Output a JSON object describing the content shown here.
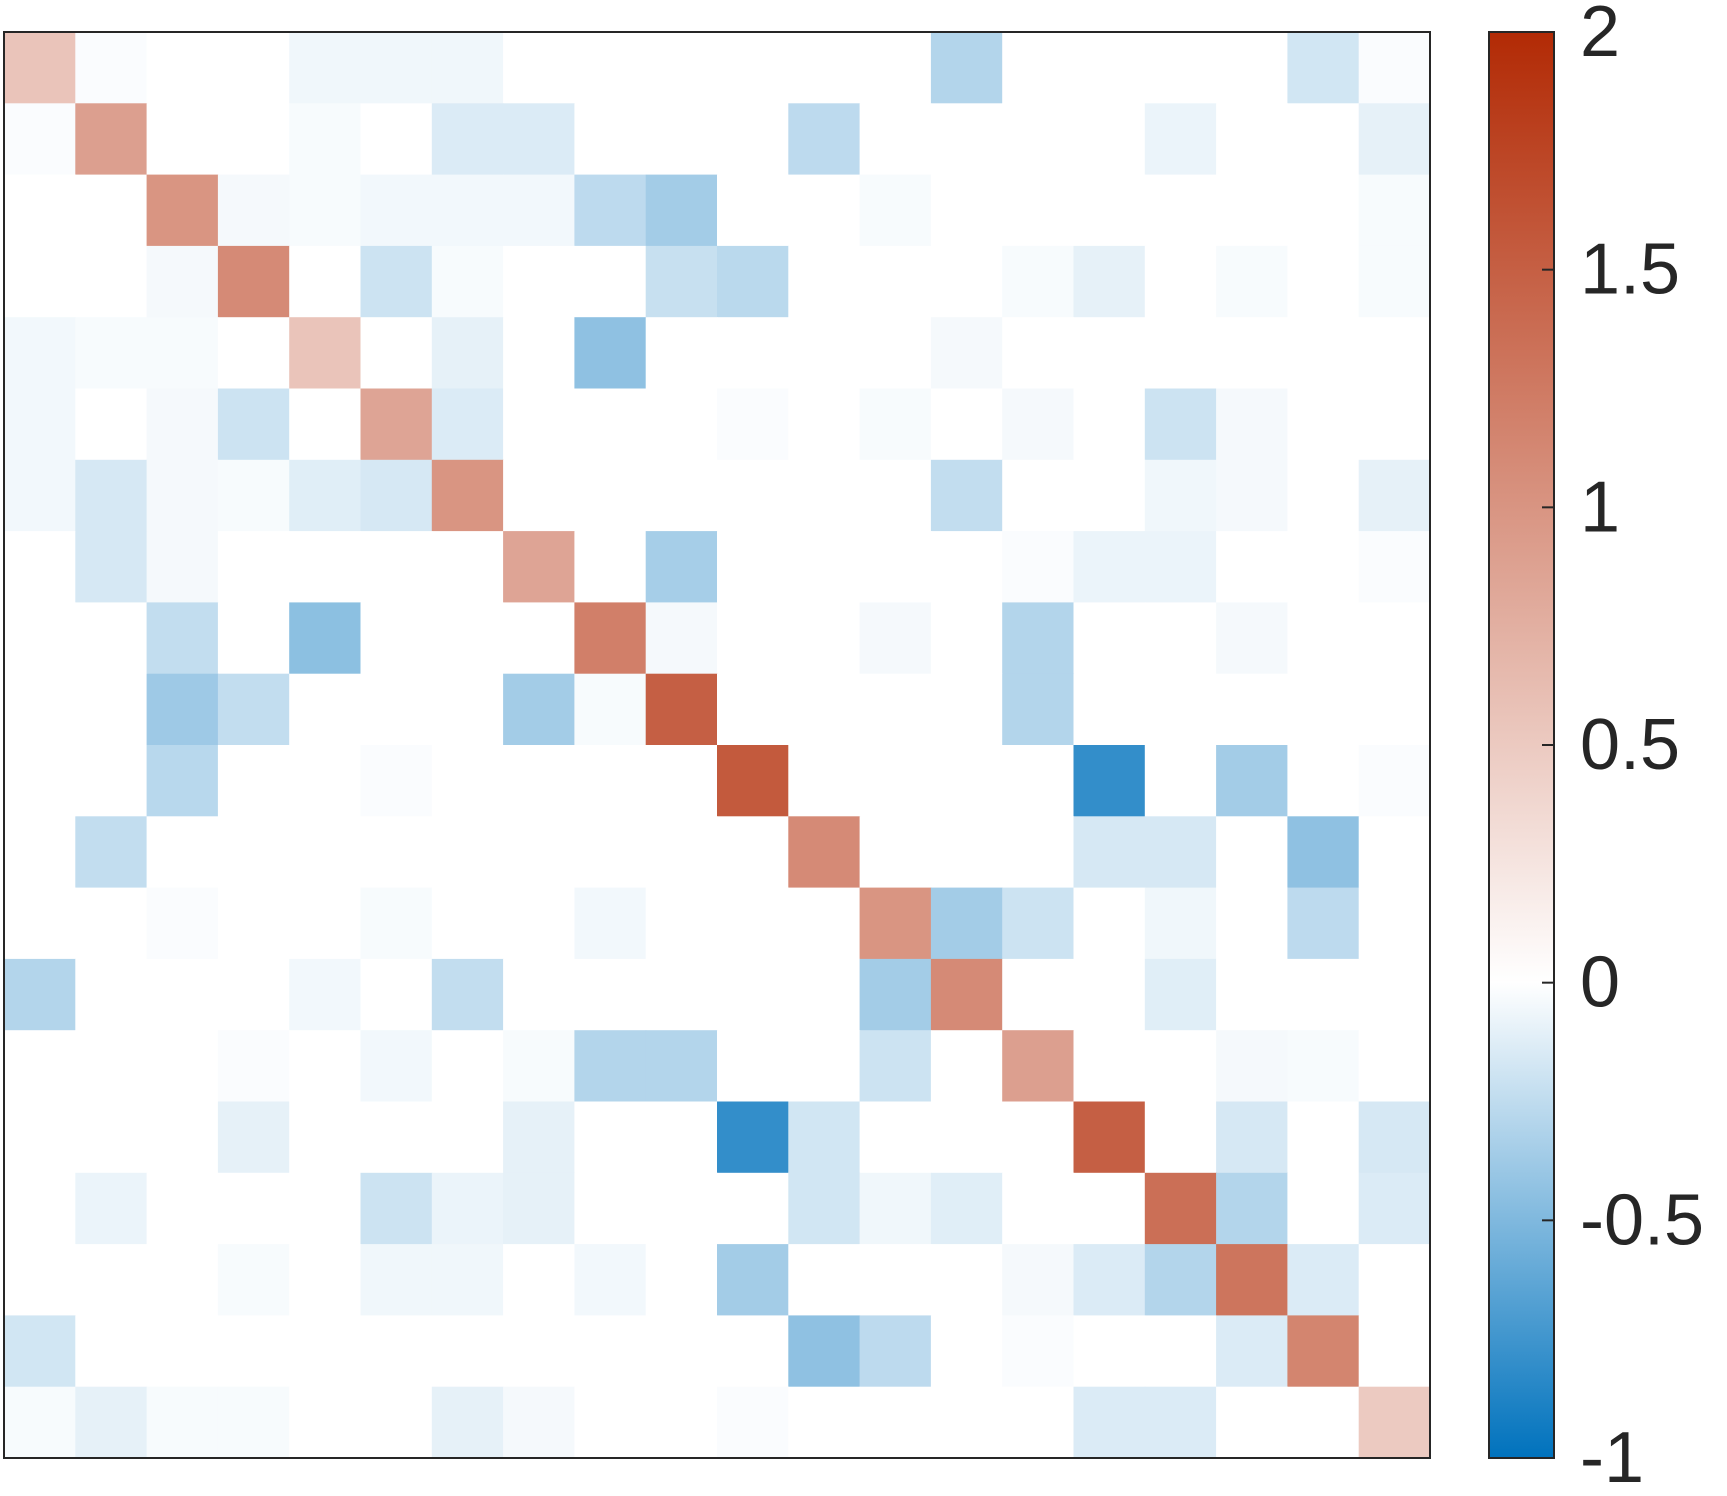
{
  "chart_data": {
    "type": "heatmap",
    "title": "",
    "xlabel": "",
    "ylabel": "",
    "rows": 20,
    "cols": 20,
    "matrix": [
      [
        0.55,
        -0.02,
        0,
        0,
        -0.06,
        -0.06,
        -0.06,
        0,
        0,
        0,
        0,
        0,
        0,
        -0.3,
        0,
        0,
        0,
        0,
        -0.18,
        -0.02
      ],
      [
        -0.02,
        0.9,
        0,
        0,
        -0.03,
        0,
        -0.14,
        -0.14,
        0,
        0,
        0,
        -0.26,
        0,
        0,
        0,
        0,
        -0.08,
        0,
        0,
        -0.1
      ],
      [
        0,
        0,
        1.0,
        -0.04,
        -0.03,
        -0.05,
        -0.05,
        -0.05,
        -0.26,
        -0.36,
        0,
        0,
        -0.03,
        0,
        0,
        0,
        0,
        0,
        0,
        -0.03
      ],
      [
        0,
        0,
        -0.04,
        1.1,
        0,
        -0.2,
        -0.03,
        0,
        0,
        -0.22,
        -0.27,
        0,
        0,
        0,
        -0.03,
        -0.1,
        0,
        -0.03,
        0,
        -0.03
      ],
      [
        -0.05,
        -0.03,
        -0.03,
        0,
        0.55,
        0,
        -0.1,
        0,
        -0.44,
        0,
        0,
        0,
        0,
        -0.04,
        0,
        0,
        0,
        0,
        0,
        0
      ],
      [
        -0.05,
        0,
        -0.04,
        -0.2,
        0,
        0.85,
        -0.14,
        0,
        0,
        0,
        -0.02,
        0,
        -0.03,
        0,
        -0.04,
        0,
        -0.2,
        -0.04,
        0,
        0
      ],
      [
        -0.05,
        -0.16,
        -0.04,
        -0.03,
        -0.12,
        -0.16,
        1.0,
        0,
        0,
        0,
        0,
        0,
        0,
        -0.24,
        0,
        0,
        -0.06,
        -0.04,
        0,
        -0.1
      ],
      [
        0,
        -0.16,
        -0.04,
        0,
        0,
        0,
        0,
        0.85,
        0,
        -0.35,
        0,
        0,
        0,
        0,
        -0.02,
        -0.08,
        -0.08,
        0,
        0,
        -0.02
      ],
      [
        0,
        0,
        -0.24,
        0,
        -0.45,
        0,
        0,
        0,
        1.2,
        -0.04,
        0,
        0,
        -0.04,
        0,
        -0.3,
        0,
        0,
        -0.04,
        0,
        0
      ],
      [
        0,
        0,
        -0.38,
        -0.24,
        0,
        0,
        0,
        -0.36,
        -0.03,
        1.5,
        0,
        0,
        0,
        0,
        -0.3,
        0,
        0,
        0,
        0,
        0
      ],
      [
        0,
        0,
        -0.28,
        0,
        0,
        -0.02,
        0,
        0,
        0,
        0,
        1.55,
        0,
        0,
        0,
        0,
        -0.8,
        0,
        -0.36,
        0,
        -0.02
      ],
      [
        0,
        -0.24,
        0,
        0,
        0,
        0,
        0,
        0,
        0,
        0,
        0,
        1.1,
        0,
        0,
        0,
        -0.16,
        -0.16,
        0,
        -0.44,
        0
      ],
      [
        0,
        0,
        -0.02,
        0,
        0,
        -0.03,
        0,
        0,
        -0.05,
        0,
        0,
        0,
        1.0,
        -0.36,
        -0.2,
        0,
        -0.06,
        0,
        -0.26,
        0
      ],
      [
        -0.3,
        0,
        0,
        0,
        -0.05,
        0,
        -0.24,
        0,
        0,
        0,
        0,
        0,
        -0.36,
        1.1,
        0,
        0,
        -0.12,
        0,
        0,
        0
      ],
      [
        0,
        0,
        0,
        -0.02,
        0,
        -0.05,
        0,
        -0.03,
        -0.3,
        -0.3,
        0,
        0,
        -0.2,
        0,
        0.9,
        0,
        0,
        -0.04,
        -0.03,
        0
      ],
      [
        0,
        0,
        0,
        -0.1,
        0,
        0,
        0,
        -0.1,
        0,
        0,
        -0.8,
        -0.18,
        0,
        0,
        0,
        1.5,
        0,
        -0.16,
        0,
        -0.16
      ],
      [
        0,
        -0.08,
        0,
        0,
        0,
        -0.2,
        -0.08,
        -0.1,
        0,
        0,
        0,
        -0.18,
        -0.06,
        -0.12,
        0,
        0,
        1.35,
        -0.3,
        0,
        -0.14
      ],
      [
        0,
        0,
        0,
        -0.03,
        0,
        -0.06,
        -0.06,
        0,
        -0.05,
        0,
        -0.36,
        0,
        0,
        0,
        -0.04,
        -0.14,
        -0.3,
        1.3,
        -0.14,
        0
      ],
      [
        -0.18,
        0,
        0,
        0,
        0,
        0,
        0,
        0,
        0,
        0,
        0,
        -0.44,
        -0.26,
        0,
        -0.02,
        0,
        0,
        -0.14,
        1.15,
        0
      ],
      [
        -0.03,
        -0.1,
        -0.03,
        -0.03,
        0,
        0,
        -0.1,
        -0.04,
        0,
        0,
        -0.02,
        0,
        0,
        0,
        0,
        -0.14,
        -0.14,
        0,
        0,
        0.5
      ]
    ],
    "colorbar": {
      "min": -1,
      "max": 2,
      "ticks": [
        2,
        1.5,
        1,
        0.5,
        0,
        -0.5,
        -1
      ],
      "tick_labels": [
        "2",
        "1.5",
        "1",
        "0.5",
        "0",
        "-0.5",
        "-1"
      ],
      "colors": {
        "min": "#0072bd",
        "zero": "#ffffff",
        "max": "#b22a05"
      }
    },
    "grid": false
  }
}
